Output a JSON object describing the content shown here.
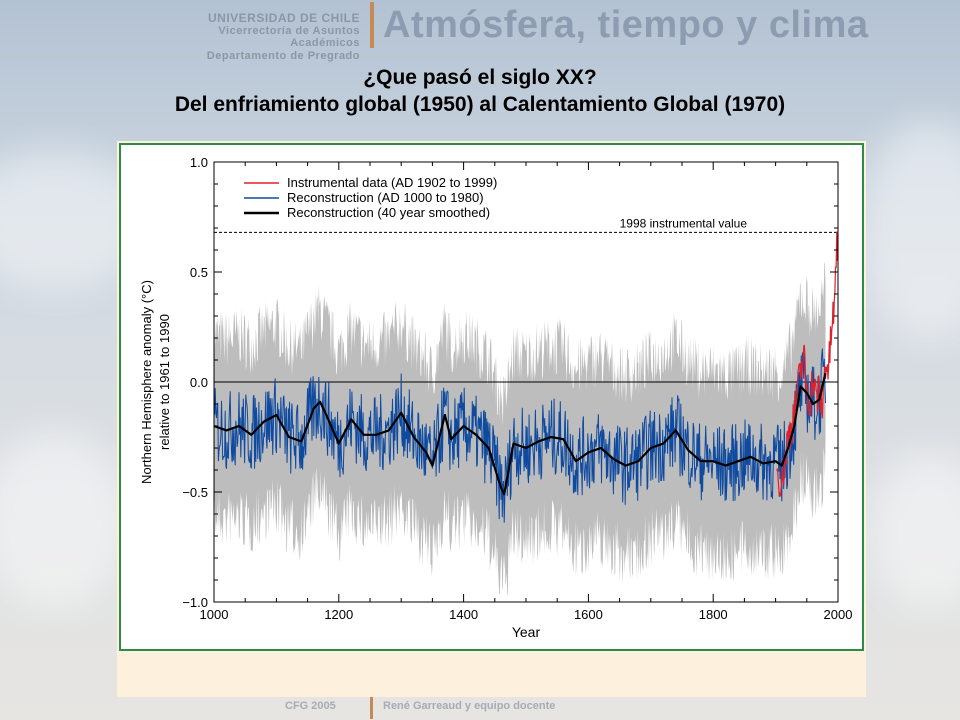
{
  "header": {
    "institution": [
      "UNIVERSIDAD DE CHILE",
      "Vicerrectoría de Asuntos Académicos",
      "Departamento de Pregrado"
    ],
    "app_title": "Atmósfera, tiempo y clima"
  },
  "slide": {
    "title_line1": "¿Que pasó el siglo XX?",
    "title_line2": "Del enfriamiento global (1950) al Calentamiento Global (1970)"
  },
  "footer": {
    "course": "CFG 2005",
    "author": "René Garreaud y equipo docente"
  },
  "colors": {
    "instrumental": "#e0202c",
    "reconstruction": "#0e4aa0",
    "smoothed": "#000000",
    "uncertainty": "#bdbdbd",
    "frame": "#2f8a45",
    "panel": "#fdf0dc"
  },
  "chart_data": {
    "type": "line",
    "xlabel": "Year",
    "ylabel": "Northern Hemisphere anomaly (°C)",
    "ylabel2": "relative to 1961 to 1990",
    "xlim": [
      1000,
      2000
    ],
    "ylim": [
      -1.0,
      1.0
    ],
    "xticks": [
      "1000",
      "1200",
      "1400",
      "1600",
      "1800",
      "2000"
    ],
    "yticks": [
      "1.0",
      "0.5",
      "0.0",
      "−0.5",
      "−1.0"
    ],
    "legend": {
      "placement": "top-left",
      "entries": [
        "Instrumental data (AD 1902 to 1999)",
        "Reconstruction (AD 1000 to 1980)",
        "Reconstruction (40 year smoothed)"
      ]
    },
    "reference_line": {
      "label": "1998 instrumental value",
      "value": 0.68
    },
    "uncertainty_halfwidth": 0.5,
    "series": [
      {
        "name": "Reconstruction (40 year smoothed)",
        "x": [
          1000,
          1020,
          1040,
          1060,
          1080,
          1100,
          1120,
          1140,
          1160,
          1170,
          1180,
          1200,
          1220,
          1240,
          1260,
          1280,
          1300,
          1320,
          1340,
          1350,
          1370,
          1380,
          1400,
          1420,
          1440,
          1460,
          1465,
          1480,
          1500,
          1520,
          1540,
          1560,
          1580,
          1600,
          1620,
          1640,
          1660,
          1680,
          1700,
          1720,
          1740,
          1760,
          1780,
          1800,
          1820,
          1840,
          1860,
          1880,
          1900,
          1910,
          1920,
          1930,
          1940,
          1950,
          1960,
          1970,
          1980
        ],
        "y": [
          -0.2,
          -0.22,
          -0.2,
          -0.24,
          -0.18,
          -0.15,
          -0.25,
          -0.27,
          -0.12,
          -0.09,
          -0.15,
          -0.28,
          -0.17,
          -0.24,
          -0.24,
          -0.22,
          -0.14,
          -0.25,
          -0.32,
          -0.38,
          -0.15,
          -0.26,
          -0.2,
          -0.24,
          -0.3,
          -0.48,
          -0.51,
          -0.28,
          -0.3,
          -0.27,
          -0.25,
          -0.26,
          -0.36,
          -0.32,
          -0.3,
          -0.35,
          -0.38,
          -0.36,
          -0.3,
          -0.28,
          -0.22,
          -0.31,
          -0.36,
          -0.36,
          -0.38,
          -0.36,
          -0.34,
          -0.37,
          -0.36,
          -0.38,
          -0.3,
          -0.2,
          -0.02,
          -0.05,
          -0.1,
          -0.08,
          0.04
        ]
      },
      {
        "name": "Instrumental data (AD 1902 to 1999)",
        "x": [
          1902,
          1910,
          1920,
          1930,
          1940,
          1945,
          1950,
          1955,
          1960,
          1965,
          1970,
          1975,
          1980,
          1985,
          1990,
          1995,
          1998,
          1999
        ],
        "y": [
          -0.4,
          -0.45,
          -0.25,
          -0.15,
          0.05,
          0.12,
          -0.05,
          -0.08,
          0.02,
          -0.08,
          -0.05,
          -0.12,
          0.1,
          0.05,
          0.25,
          0.35,
          0.68,
          0.5
        ]
      }
    ]
  }
}
